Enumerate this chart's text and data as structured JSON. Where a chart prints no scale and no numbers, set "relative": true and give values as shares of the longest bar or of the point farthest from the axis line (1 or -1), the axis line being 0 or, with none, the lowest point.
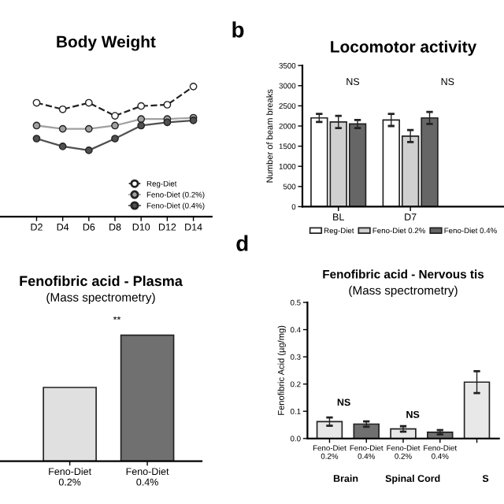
{
  "chart_data": [
    {
      "type": "line",
      "title": "Body Weight",
      "relative": true,
      "categories": [
        "D2",
        "D4",
        "D6",
        "D8",
        "D10",
        "D12",
        "D14"
      ],
      "marker": "circle",
      "legend": "bottom right",
      "grid": false,
      "series": [
        {
          "name": "Reg-Diet",
          "color": "#ffffff",
          "line_style": "dashed",
          "values": [
            0.875,
            0.825,
            0.875,
            0.775,
            0.85,
            0.86,
            1.0
          ]
        },
        {
          "name": "Feno-Diet (0.2%)",
          "color": "#a0a0a0",
          "line_style": "solid",
          "values": [
            0.7,
            0.675,
            0.675,
            0.7,
            0.75,
            0.75,
            0.76
          ]
        },
        {
          "name": "Feno-Diet (0.4%)",
          "color": "#505050",
          "line_style": "solid",
          "values": [
            0.6,
            0.54,
            0.51,
            0.6,
            0.7,
            0.725,
            0.74
          ]
        }
      ]
    },
    {
      "type": "bar",
      "title": "Locomotor activity",
      "ylabel": "Number of beam breaks",
      "categories": [
        "BL",
        "D7"
      ],
      "ylim": [
        0,
        3500
      ],
      "yticks": [
        0,
        500,
        1000,
        1500,
        2000,
        2500,
        3000,
        3500
      ],
      "legend": "bottom",
      "grid": false,
      "annotations": [
        "b",
        "NS",
        "NS"
      ],
      "series": [
        {
          "name": "Reg-Diet",
          "color": "#ffffff",
          "values": [
            2200,
            2150
          ],
          "errors": [
            100,
            150
          ]
        },
        {
          "name": "Feno-Diet 0.2%",
          "color": "#d0d0d0",
          "values": [
            2100,
            1750
          ],
          "errors": [
            150,
            150
          ]
        },
        {
          "name": "Feno-Diet 0.4%",
          "color": "#666666",
          "values": [
            2050,
            2200
          ],
          "errors": [
            100,
            150
          ]
        }
      ]
    },
    {
      "type": "bar",
      "title": "Fenofibric acid - Plasma",
      "subtitle": "(Mass spectrometry)",
      "relative": true,
      "categories": [
        "Feno-Diet\n0.2%",
        "Feno-Diet\n0.4%"
      ],
      "grid": false,
      "annotations": [
        "**"
      ],
      "series": [
        {
          "colors": [
            "#e0e0e0",
            "#707070"
          ],
          "values": [
            0.585,
            1.0
          ]
        }
      ]
    },
    {
      "type": "bar",
      "title": "Fenofibric acid - Nervous tis",
      "subtitle": "(Mass spectrometry)",
      "ylabel": "Fenofibric Acid (µg/mg)",
      "categories": [
        "Feno-Diet\n0.2%",
        "Feno-Diet\n0.4%",
        "Feno-Diet\n0.2%",
        "Feno-Diet\n0.4%",
        null
      ],
      "ylim": [
        0,
        0.5
      ],
      "yticks": [
        {
          "value": 0,
          "label": "0.0"
        },
        0.1,
        0.2,
        0.3,
        0.4,
        0.5
      ],
      "grid": false,
      "annotations": [
        "d",
        "NS",
        "NS",
        "Brain",
        "Spinal Cord",
        "S"
      ],
      "series": [
        {
          "colors": [
            "#e8e8e8",
            "#707070",
            "#e8e8e8",
            "#707070",
            "#e8e8e8"
          ],
          "values": [
            0.062,
            0.053,
            0.035,
            0.023,
            0.207
          ],
          "errors": [
            0.015,
            0.01,
            0.01,
            0.008,
            0.04
          ]
        }
      ]
    }
  ]
}
